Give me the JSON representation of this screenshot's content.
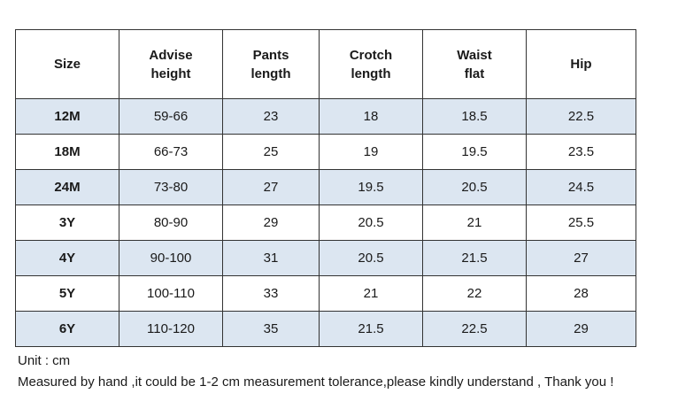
{
  "headers": [
    [
      "Size"
    ],
    [
      "Advise",
      "height"
    ],
    [
      "Pants",
      "length"
    ],
    [
      "Crotch",
      "length"
    ],
    [
      "Waist",
      "flat"
    ],
    [
      "Hip"
    ]
  ],
  "rows": [
    [
      "12M",
      "59-66",
      "23",
      "18",
      "18.5",
      "22.5"
    ],
    [
      "18M",
      "66-73",
      "25",
      "19",
      "19.5",
      "23.5"
    ],
    [
      "24M",
      "73-80",
      "27",
      "19.5",
      "20.5",
      "24.5"
    ],
    [
      "3Y",
      "80-90",
      "29",
      "20.5",
      "21",
      "25.5"
    ],
    [
      "4Y",
      "90-100",
      "31",
      "20.5",
      "21.5",
      "27"
    ],
    [
      "5Y",
      "100-110",
      "33",
      "21",
      "22",
      "28"
    ],
    [
      "6Y",
      "110-120",
      "35",
      "21.5",
      "22.5",
      "29"
    ]
  ],
  "notes": {
    "unit": "Unit : cm",
    "disclaimer": "Measured by hand ,it could be 1-2 cm measurement tolerance,please kindly understand , Thank you !"
  },
  "colors": {
    "shaded_row": "#dce6f1",
    "border": "#333333"
  }
}
